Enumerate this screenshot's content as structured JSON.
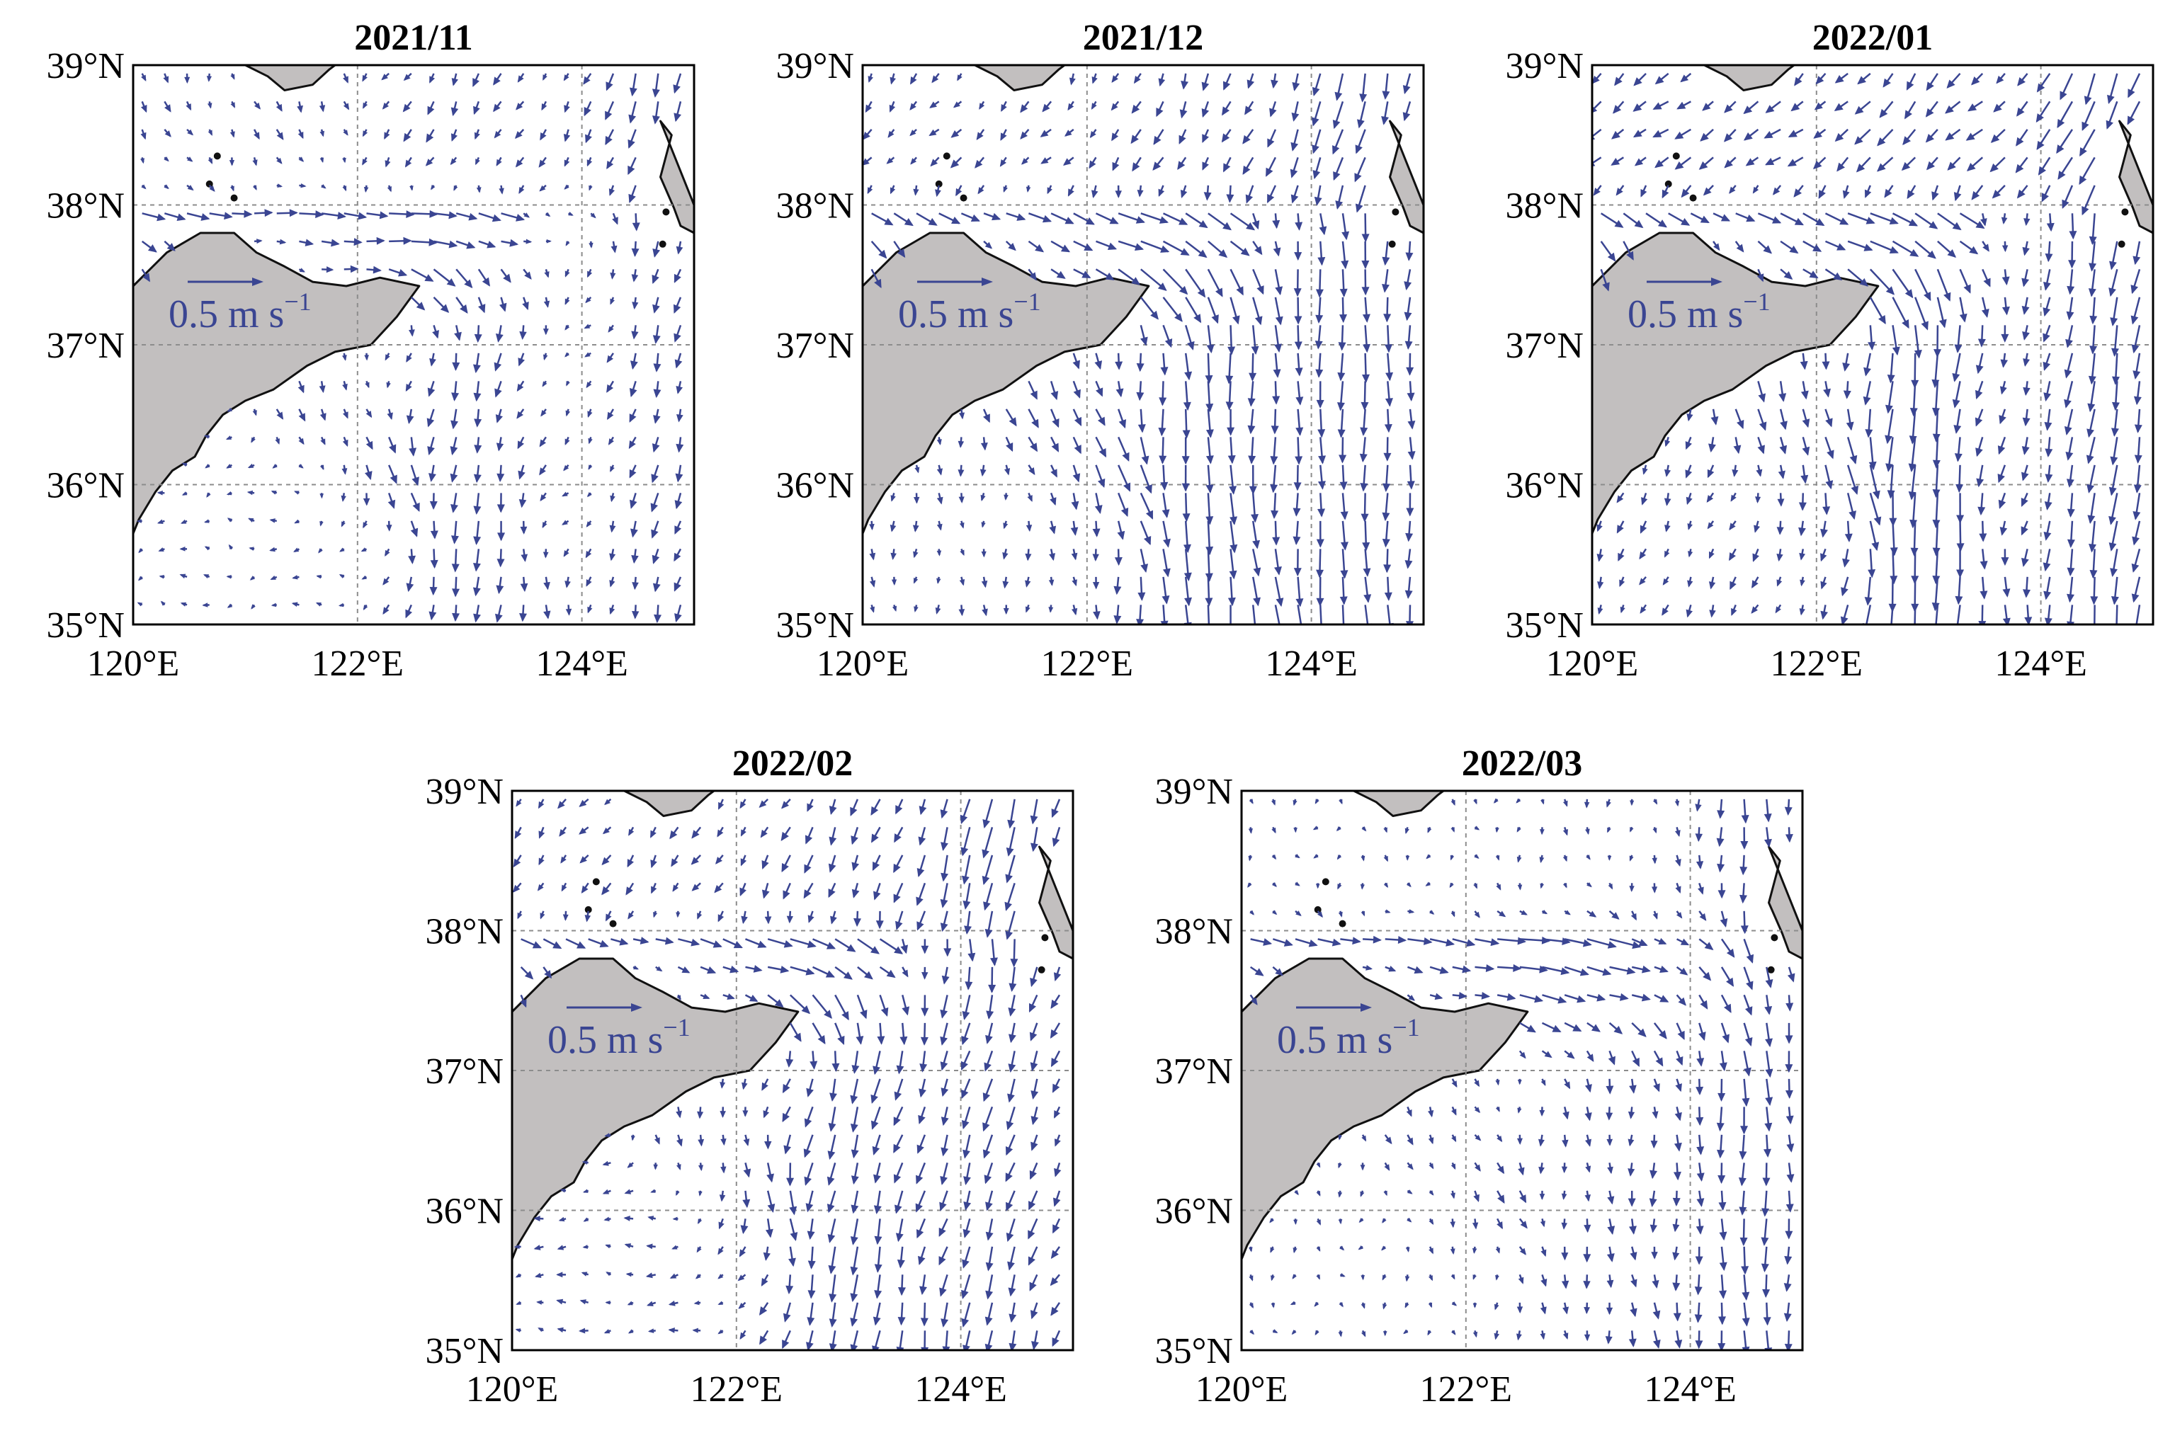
{
  "figure": {
    "panels": [
      {
        "title": "2021/11",
        "scale_label": "0.5 m s",
        "scale_exp": "−1",
        "pattern": "nov"
      },
      {
        "title": "2021/12",
        "scale_label": "0.5 m s",
        "scale_exp": "−1",
        "pattern": "dec"
      },
      {
        "title": "2022/01",
        "scale_label": "0.5 m s",
        "scale_exp": "−1",
        "pattern": "jan"
      },
      {
        "title": "2022/02",
        "scale_label": "0.5 m s",
        "scale_exp": "−1",
        "pattern": "feb"
      },
      {
        "title": "2022/03",
        "scale_label": "0.5 m s",
        "scale_exp": "−1",
        "pattern": "mar"
      }
    ],
    "axes": {
      "lat_ticks": [
        "39°N",
        "38°N",
        "37°N",
        "36°N",
        "35°N"
      ],
      "lon_ticks": [
        "120°E",
        "122°E",
        "124°E"
      ],
      "lat_range": [
        35,
        39
      ],
      "lon_range": [
        120,
        125
      ]
    },
    "colors": {
      "land": "#c2bfbf",
      "coast": "#111111",
      "arrow": "#3a4592",
      "grid": "#8c8c8c",
      "scale_text": "#3a4592"
    }
  }
}
